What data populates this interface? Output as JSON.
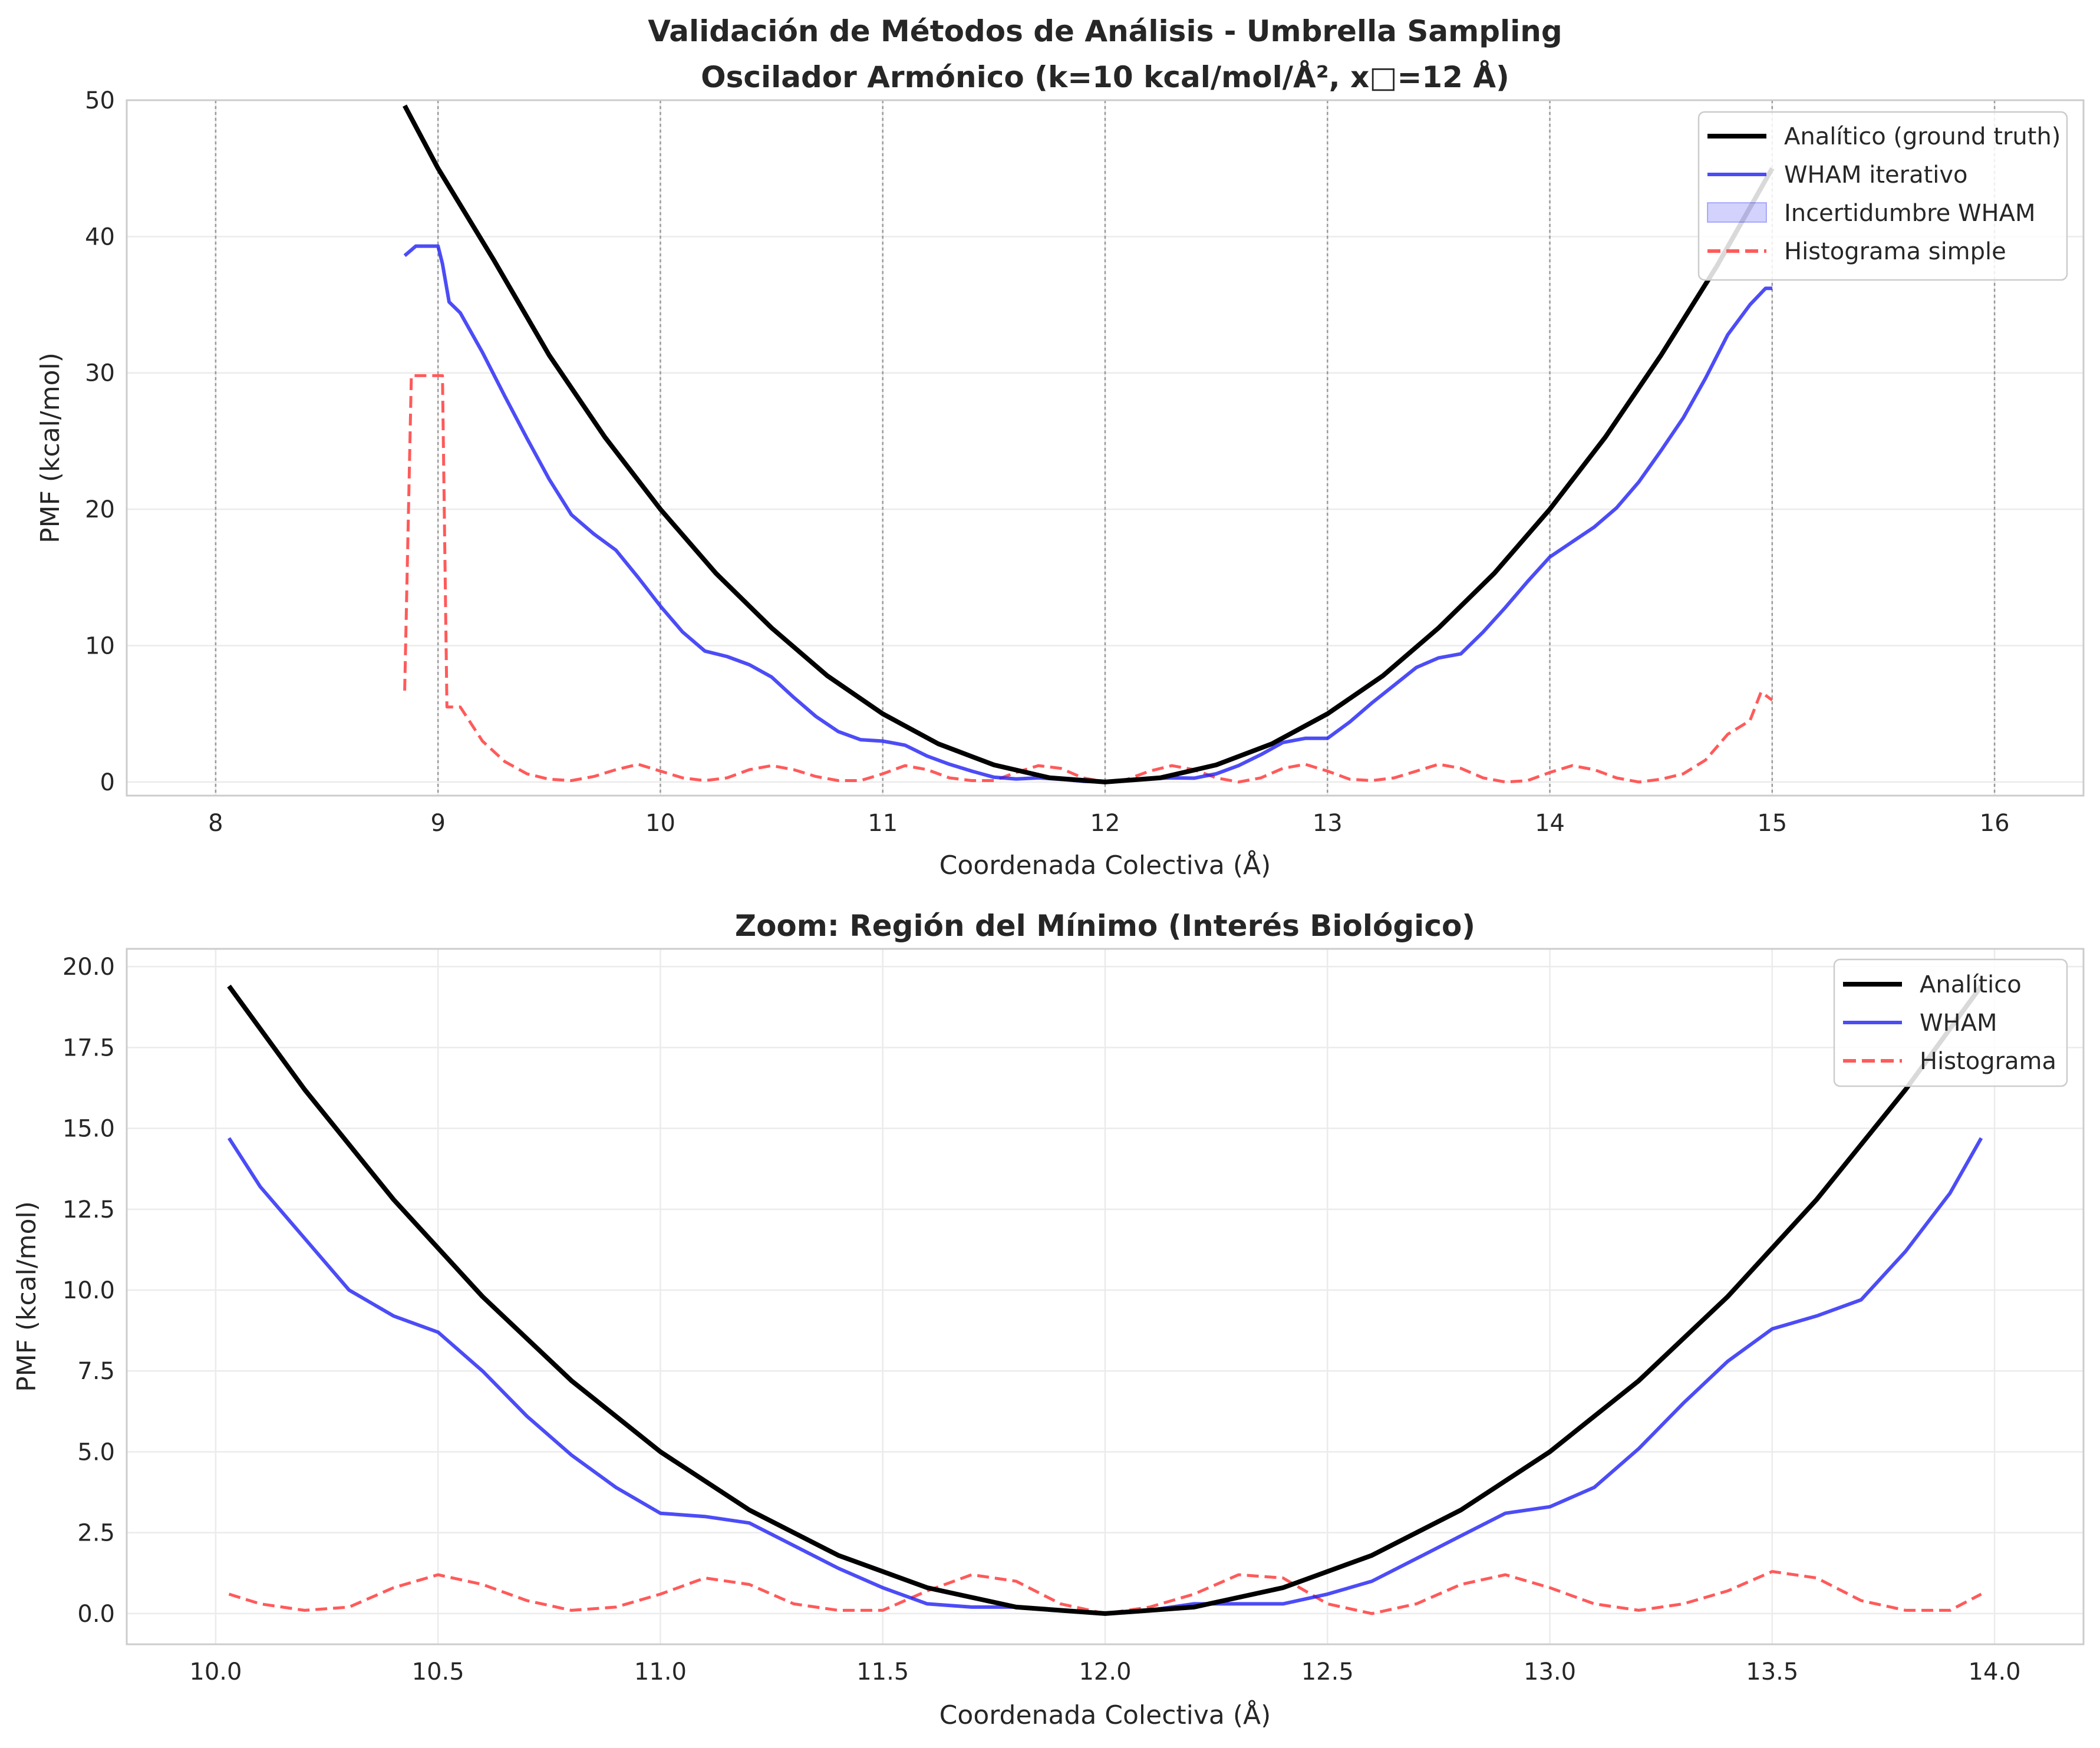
{
  "chart_data": [
    {
      "type": "line",
      "title": "Validación de Métodos de Análisis - Umbrella Sampling",
      "subtitle": "Oscilador Armónico (k=10 kcal/mol/Å², x□=12 Å)",
      "xlabel": "Coordenada Colectiva (Å)",
      "ylabel": "PMF (kcal/mol)",
      "xlim": [
        7.6,
        16.4
      ],
      "ylim": [
        -1,
        50
      ],
      "xticks": [
        "8",
        "9",
        "10",
        "11",
        "12",
        "13",
        "14",
        "15",
        "16"
      ],
      "yticks": [
        "0",
        "10",
        "20",
        "30",
        "40",
        "50"
      ],
      "vlines": [
        8,
        9,
        10,
        11,
        12,
        13,
        14,
        15,
        16
      ],
      "grid": true,
      "legend_position": "top-right",
      "legend": [
        "Analítico (ground truth)",
        "WHAM iterativo",
        "Incertidumbre WHAM",
        "Histograma simple"
      ],
      "series": [
        {
          "name": "Analítico (ground truth)",
          "color": "#000000",
          "x": [
            8.85,
            9.0,
            9.25,
            9.5,
            9.75,
            10.0,
            10.25,
            10.5,
            10.75,
            11.0,
            11.25,
            11.5,
            11.75,
            12.0,
            12.25,
            12.5,
            12.75,
            13.0,
            13.25,
            13.5,
            13.75,
            14.0,
            14.25,
            14.5,
            14.75,
            15.0
          ],
          "y": [
            49.6,
            45.0,
            38.3,
            31.3,
            25.3,
            20.0,
            15.3,
            11.3,
            7.8,
            5.0,
            2.8,
            1.25,
            0.31,
            0.0,
            0.31,
            1.25,
            2.8,
            5.0,
            7.8,
            11.3,
            15.3,
            20.0,
            25.3,
            31.3,
            37.8,
            45.0
          ]
        },
        {
          "name": "WHAM iterativo",
          "color": "#1f1ff5",
          "x": [
            8.85,
            8.9,
            9.0,
            9.02,
            9.05,
            9.1,
            9.2,
            9.3,
            9.4,
            9.5,
            9.6,
            9.7,
            9.8,
            9.9,
            10.0,
            10.1,
            10.2,
            10.3,
            10.4,
            10.5,
            10.6,
            10.7,
            10.8,
            10.9,
            11.0,
            11.1,
            11.2,
            11.3,
            11.4,
            11.5,
            11.6,
            11.7,
            11.8,
            11.9,
            12.0,
            12.1,
            12.2,
            12.3,
            12.4,
            12.5,
            12.6,
            12.7,
            12.8,
            12.9,
            13.0,
            13.1,
            13.2,
            13.3,
            13.4,
            13.5,
            13.6,
            13.7,
            13.8,
            13.9,
            14.0,
            14.1,
            14.2,
            14.3,
            14.4,
            14.5,
            14.6,
            14.7,
            14.8,
            14.9,
            14.97,
            15.0
          ],
          "y": [
            38.6,
            39.3,
            39.3,
            38.0,
            35.2,
            34.4,
            31.5,
            28.3,
            25.2,
            22.2,
            19.6,
            18.2,
            17.0,
            15.0,
            12.9,
            11.0,
            9.6,
            9.2,
            8.6,
            7.7,
            6.2,
            4.8,
            3.7,
            3.1,
            3.0,
            2.7,
            1.9,
            1.3,
            0.8,
            0.35,
            0.22,
            0.3,
            0.2,
            0.05,
            0.0,
            0.1,
            0.25,
            0.3,
            0.28,
            0.6,
            1.2,
            2.0,
            2.9,
            3.2,
            3.2,
            4.4,
            5.8,
            7.1,
            8.4,
            9.1,
            9.4,
            11.0,
            12.8,
            14.7,
            16.5,
            17.6,
            18.7,
            20.1,
            22.0,
            24.3,
            26.7,
            29.6,
            32.8,
            35.0,
            36.2,
            36.2
          ]
        },
        {
          "name": "Histograma simple",
          "color": "#ff5a5a",
          "dashed": true,
          "x": [
            8.85,
            8.88,
            9.0,
            9.02,
            9.04,
            9.1,
            9.2,
            9.3,
            9.4,
            9.5,
            9.6,
            9.7,
            9.8,
            9.9,
            10.0,
            10.1,
            10.2,
            10.3,
            10.4,
            10.5,
            10.6,
            10.7,
            10.8,
            10.9,
            11.0,
            11.1,
            11.2,
            11.3,
            11.4,
            11.5,
            11.6,
            11.7,
            11.8,
            11.9,
            12.0,
            12.1,
            12.2,
            12.3,
            12.4,
            12.5,
            12.6,
            12.7,
            12.8,
            12.9,
            13.0,
            13.1,
            13.2,
            13.3,
            13.4,
            13.5,
            13.6,
            13.7,
            13.8,
            13.9,
            14.0,
            14.1,
            14.2,
            14.3,
            14.4,
            14.5,
            14.6,
            14.7,
            14.8,
            14.9,
            14.95,
            15.0
          ],
          "y": [
            6.7,
            29.8,
            29.8,
            29.8,
            5.5,
            5.5,
            3.0,
            1.5,
            0.6,
            0.2,
            0.1,
            0.4,
            0.9,
            1.3,
            0.8,
            0.3,
            0.1,
            0.3,
            0.9,
            1.2,
            0.9,
            0.4,
            0.1,
            0.1,
            0.6,
            1.2,
            0.9,
            0.3,
            0.1,
            0.1,
            0.7,
            1.2,
            1.0,
            0.3,
            0.0,
            0.2,
            0.8,
            1.2,
            0.9,
            0.3,
            0.0,
            0.3,
            1.0,
            1.3,
            0.8,
            0.2,
            0.1,
            0.3,
            0.8,
            1.3,
            1.0,
            0.3,
            0.0,
            0.1,
            0.7,
            1.2,
            0.9,
            0.3,
            0.0,
            0.2,
            0.6,
            1.6,
            3.5,
            4.5,
            6.6,
            6.0
          ]
        }
      ]
    },
    {
      "type": "line",
      "title": "Zoom: Región del Mínimo (Interés Biológico)",
      "xlabel": "Coordenada Colectiva (Å)",
      "ylabel": "PMF (kcal/mol)",
      "xlim": [
        9.8,
        14.2
      ],
      "ylim": [
        -0.95,
        20.55
      ],
      "xticks": [
        "10.0",
        "10.5",
        "11.0",
        "11.5",
        "12.0",
        "12.5",
        "13.0",
        "13.5",
        "14.0"
      ],
      "yticks": [
        "0.0",
        "2.5",
        "5.0",
        "7.5",
        "10.0",
        "12.5",
        "15.0",
        "17.5",
        "20.0"
      ],
      "grid": true,
      "legend_position": "top-right",
      "legend": [
        "Analítico",
        "WHAM",
        "Histograma"
      ],
      "series": [
        {
          "name": "Analítico",
          "color": "#000000",
          "x": [
            10.03,
            10.2,
            10.4,
            10.6,
            10.8,
            11.0,
            11.2,
            11.4,
            11.6,
            11.8,
            12.0,
            12.2,
            12.4,
            12.6,
            12.8,
            13.0,
            13.2,
            13.4,
            13.6,
            13.8,
            13.97
          ],
          "y": [
            19.4,
            16.2,
            12.8,
            9.8,
            7.2,
            5.0,
            3.2,
            1.8,
            0.8,
            0.2,
            0.0,
            0.2,
            0.8,
            1.8,
            3.2,
            5.0,
            7.2,
            9.8,
            12.8,
            16.2,
            19.4
          ]
        },
        {
          "name": "WHAM",
          "color": "#1f1ff5",
          "x": [
            10.03,
            10.1,
            10.2,
            10.3,
            10.4,
            10.5,
            10.6,
            10.7,
            10.8,
            10.9,
            11.0,
            11.1,
            11.2,
            11.3,
            11.4,
            11.5,
            11.6,
            11.7,
            11.8,
            11.9,
            12.0,
            12.1,
            12.2,
            12.3,
            12.4,
            12.5,
            12.6,
            12.7,
            12.8,
            12.9,
            13.0,
            13.1,
            13.2,
            13.3,
            13.4,
            13.5,
            13.6,
            13.7,
            13.8,
            13.9,
            13.97
          ],
          "y": [
            14.7,
            13.2,
            11.6,
            10.0,
            9.2,
            8.7,
            7.5,
            6.1,
            4.9,
            3.9,
            3.1,
            3.0,
            2.8,
            2.1,
            1.4,
            0.8,
            0.3,
            0.2,
            0.2,
            0.1,
            0.0,
            0.1,
            0.3,
            0.3,
            0.3,
            0.6,
            1.0,
            1.7,
            2.4,
            3.1,
            3.3,
            3.9,
            5.1,
            6.5,
            7.8,
            8.8,
            9.2,
            9.7,
            11.2,
            13.0,
            14.7
          ]
        },
        {
          "name": "Histograma",
          "color": "#ff5a5a",
          "dashed": true,
          "x": [
            10.03,
            10.1,
            10.2,
            10.3,
            10.4,
            10.5,
            10.6,
            10.7,
            10.8,
            10.9,
            11.0,
            11.1,
            11.2,
            11.3,
            11.4,
            11.5,
            11.6,
            11.7,
            11.8,
            11.9,
            12.0,
            12.1,
            12.2,
            12.3,
            12.4,
            12.5,
            12.6,
            12.7,
            12.8,
            12.9,
            13.0,
            13.1,
            13.2,
            13.3,
            13.4,
            13.5,
            13.6,
            13.7,
            13.8,
            13.9,
            13.97
          ],
          "y": [
            0.6,
            0.3,
            0.1,
            0.2,
            0.8,
            1.2,
            0.9,
            0.4,
            0.1,
            0.2,
            0.6,
            1.1,
            0.9,
            0.3,
            0.1,
            0.1,
            0.7,
            1.2,
            1.0,
            0.3,
            0.0,
            0.2,
            0.6,
            1.2,
            1.1,
            0.3,
            0.0,
            0.3,
            0.9,
            1.2,
            0.8,
            0.3,
            0.1,
            0.3,
            0.7,
            1.3,
            1.1,
            0.4,
            0.1,
            0.1,
            0.6
          ]
        }
      ]
    }
  ]
}
